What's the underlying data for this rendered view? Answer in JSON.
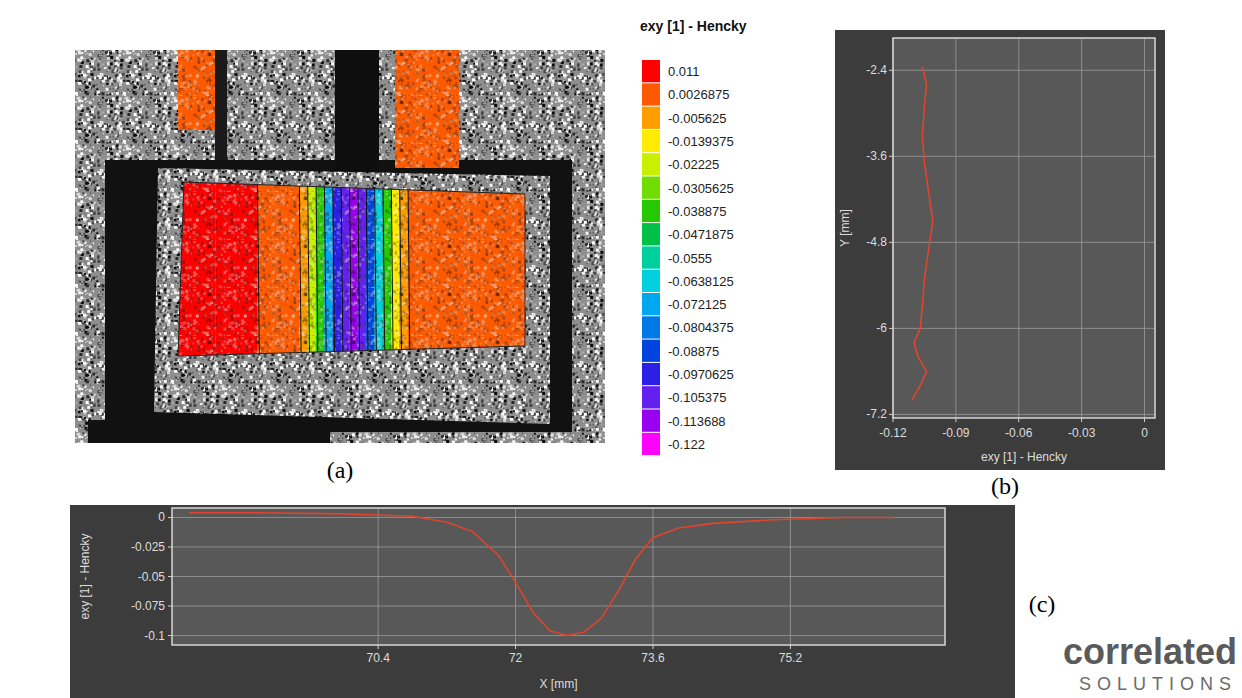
{
  "contour_map": {
    "panel_label": "(a)",
    "colorbar": {
      "title": "exy [1] - Hencky",
      "ticks": [
        0.011,
        0.0026875,
        -0.005625,
        -0.0139375,
        -0.02225,
        -0.0305625,
        -0.038875,
        -0.0471875,
        -0.0555,
        -0.0638125,
        -0.072125,
        -0.0804375,
        -0.08875,
        -0.0970625,
        -0.105375,
        -0.113688,
        -0.122
      ],
      "colors": [
        "#ff0000",
        "#ff5a00",
        "#ff9c00",
        "#ffec00",
        "#c8f000",
        "#70dc00",
        "#28c800",
        "#00c048",
        "#00d0a0",
        "#00d0e0",
        "#00a8f0",
        "#0078e8",
        "#0044e0",
        "#2a20e6",
        "#6420f0",
        "#9a00f0",
        "#ff00ff"
      ]
    },
    "field": {
      "xlim": [
        68.0,
        76.3
      ],
      "x": [
        68.0,
        69.8,
        70.0,
        70.8,
        71.0,
        71.2,
        71.4,
        71.6,
        71.8,
        72.0,
        72.2,
        72.4,
        72.6,
        72.8,
        73.0,
        73.2,
        73.4,
        73.6,
        76.3
      ],
      "values": [
        0.011,
        0.009,
        0.004,
        0.002,
        -0.006,
        -0.02,
        -0.04,
        -0.07,
        -0.095,
        -0.105,
        -0.113,
        -0.105,
        -0.09,
        -0.06,
        -0.035,
        -0.015,
        -0.004,
        0.002,
        0.002
      ]
    }
  },
  "chart_data": [
    {
      "type": "line",
      "panel_label": "(b)",
      "x_label": "exy [1] - Hencky",
      "y_label": "Y [mm]",
      "xlim": [
        -0.12,
        0.005
      ],
      "ylim": [
        -7.25,
        -1.95
      ],
      "xticks": [
        -0.12,
        -0.09,
        -0.06,
        -0.03,
        0
      ],
      "yticks": [
        -2.4,
        -3.6,
        -4.8,
        -6,
        -7.2
      ],
      "grid": true,
      "x": [
        -0.106,
        -0.104,
        -0.105,
        -0.106,
        -0.105,
        -0.103,
        -0.101,
        -0.103,
        -0.105,
        -0.106,
        -0.107,
        -0.11,
        -0.108,
        -0.104,
        -0.107,
        -0.111
      ],
      "series": [
        {
          "color": "#e0442c",
          "values": [
            -2.35,
            -2.6,
            -2.9,
            -3.3,
            -3.7,
            -4.1,
            -4.5,
            -4.9,
            -5.3,
            -5.7,
            -6.0,
            -6.2,
            -6.4,
            -6.6,
            -6.8,
            -7.0
          ]
        }
      ]
    },
    {
      "type": "line",
      "panel_label": "(c)",
      "x_label": "X [mm]",
      "y_label": "exy [1] - Hencky",
      "xlim": [
        68.0,
        77.0
      ],
      "ylim": [
        -0.108,
        0.008
      ],
      "xticks": [
        70.4,
        72,
        73.6,
        75.2
      ],
      "yticks": [
        0,
        -0.025,
        -0.05,
        -0.075,
        -0.1
      ],
      "grid": true,
      "x": [
        68.2,
        69.0,
        70.0,
        70.8,
        71.2,
        71.5,
        71.8,
        72.0,
        72.2,
        72.4,
        72.6,
        72.8,
        73.0,
        73.2,
        73.4,
        73.6,
        73.9,
        74.3,
        75.0,
        75.8,
        76.4
      ],
      "series": [
        {
          "color": "#e0442c",
          "values": [
            0.004,
            0.004,
            0.003,
            0.001,
            -0.004,
            -0.012,
            -0.032,
            -0.055,
            -0.08,
            -0.096,
            -0.1,
            -0.097,
            -0.085,
            -0.062,
            -0.035,
            -0.017,
            -0.009,
            -0.005,
            -0.002,
            0.0,
            0.0
          ]
        }
      ]
    }
  ],
  "watermark": [
    "correlated",
    "SOLUTIONS"
  ]
}
